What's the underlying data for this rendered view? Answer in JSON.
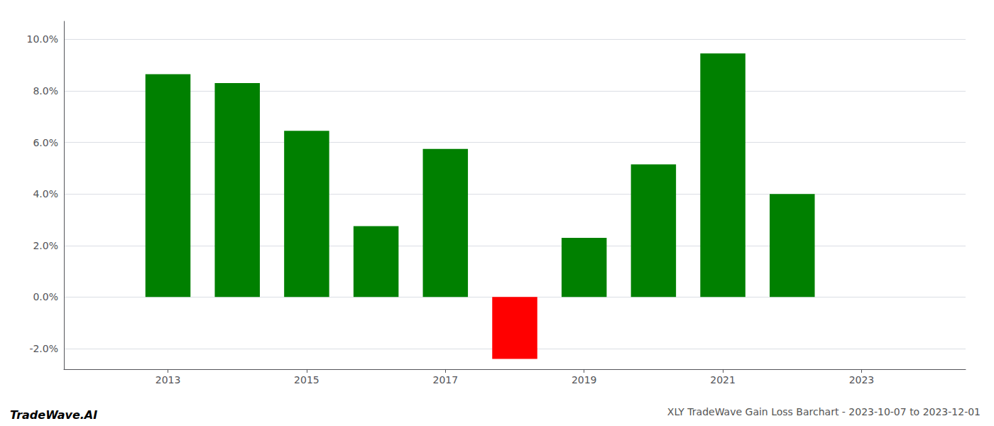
{
  "chart_data": {
    "type": "bar",
    "title": "XLY TradeWave Gain Loss Barchart - 2023-10-07 to 2023-12-01",
    "annotations": [
      "TradeWave.AI"
    ],
    "x": [
      2013,
      2014,
      2015,
      2016,
      2017,
      2018,
      2019,
      2020,
      2021,
      2022
    ],
    "values": [
      0.0865,
      0.083,
      0.0645,
      0.0275,
      0.0575,
      -0.024,
      0.023,
      0.0515,
      0.0945,
      0.04
    ],
    "colors": [
      "#008000",
      "#008000",
      "#008000",
      "#008000",
      "#008000",
      "#ff0000",
      "#008000",
      "#008000",
      "#008000",
      "#008000"
    ],
    "xlim": [
      2011.5,
      2024.5
    ],
    "xticks": [
      2013,
      2015,
      2017,
      2019,
      2021,
      2023
    ],
    "ylim": [
      -0.028,
      0.107
    ],
    "yticks": [
      {
        "value": -0.02,
        "label": "-2.0%"
      },
      {
        "value": 0.0,
        "label": "0.0%"
      },
      {
        "value": 0.02,
        "label": "2.0%"
      },
      {
        "value": 0.04,
        "label": "4.0%"
      },
      {
        "value": 0.06,
        "label": "6.0%"
      },
      {
        "value": 0.08,
        "label": "8.0%"
      },
      {
        "value": 0.1,
        "label": "10.0%"
      }
    ],
    "grid": true
  }
}
